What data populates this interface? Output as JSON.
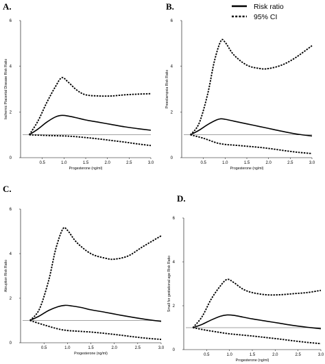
{
  "legend": [
    {
      "label": "Risk ratio",
      "style": "solid"
    },
    {
      "label": "95% CI",
      "style": "dotted"
    }
  ],
  "chart_data": [
    {
      "type": "line",
      "panel": "A.",
      "xlabel": "Progesterone (ng/ml)",
      "ylabel": "Ischemic Placental Disease Risk Ratio",
      "xlim": [
        0,
        3.0
      ],
      "ylim": [
        0,
        6
      ],
      "xticks": [
        "0.5",
        "1.0",
        "1.5",
        "2.0",
        "2.5",
        "3.0"
      ],
      "yticks": [
        "0",
        "2",
        "4",
        "6"
      ],
      "reference_line": 1,
      "series": [
        {
          "role": "estimate",
          "style": "solid",
          "x": [
            0.2,
            0.4,
            0.6,
            0.8,
            0.95,
            1.1,
            1.3,
            1.5,
            1.8,
            2.1,
            2.4,
            2.7,
            3.0
          ],
          "y": [
            1.0,
            1.25,
            1.55,
            1.78,
            1.85,
            1.82,
            1.74,
            1.65,
            1.55,
            1.45,
            1.35,
            1.27,
            1.2
          ]
        },
        {
          "role": "upper",
          "style": "dotted",
          "x": [
            0.2,
            0.4,
            0.6,
            0.8,
            0.95,
            1.1,
            1.3,
            1.5,
            1.8,
            2.1,
            2.4,
            2.7,
            3.0
          ],
          "y": [
            1.0,
            1.6,
            2.4,
            3.1,
            3.5,
            3.3,
            2.95,
            2.75,
            2.7,
            2.7,
            2.75,
            2.78,
            2.8
          ]
        },
        {
          "role": "lower",
          "style": "dotted",
          "x": [
            0.2,
            0.5,
            0.8,
            1.0,
            1.2,
            1.5,
            1.8,
            2.1,
            2.4,
            2.7,
            3.0
          ],
          "y": [
            1.0,
            0.98,
            0.96,
            0.95,
            0.93,
            0.88,
            0.82,
            0.75,
            0.68,
            0.6,
            0.53
          ]
        }
      ]
    },
    {
      "type": "line",
      "panel": "B.",
      "xlabel": "Progesterone (ng/ml)",
      "ylabel": "Preeclampsia Risk Ratio",
      "xlim": [
        0,
        3.0
      ],
      "ylim": [
        0,
        6
      ],
      "xticks": [
        "0.5",
        "1.0",
        "1.5",
        "2.0",
        "2.5",
        "3.0"
      ],
      "yticks": [
        "0",
        "2",
        "4",
        "6"
      ],
      "reference_line": 1,
      "series": [
        {
          "role": "estimate",
          "style": "solid",
          "x": [
            0.2,
            0.4,
            0.6,
            0.8,
            0.9,
            1.0,
            1.2,
            1.5,
            1.8,
            2.1,
            2.4,
            2.7,
            3.0
          ],
          "y": [
            1.0,
            1.2,
            1.45,
            1.65,
            1.7,
            1.68,
            1.6,
            1.48,
            1.36,
            1.24,
            1.12,
            1.02,
            0.95
          ]
        },
        {
          "role": "upper",
          "style": "dotted",
          "x": [
            0.2,
            0.4,
            0.6,
            0.75,
            0.9,
            1.0,
            1.2,
            1.5,
            1.8,
            2.0,
            2.3,
            2.6,
            3.0
          ],
          "y": [
            1.0,
            1.5,
            2.8,
            4.2,
            5.1,
            5.05,
            4.5,
            4.05,
            3.9,
            3.9,
            4.05,
            4.35,
            4.9
          ]
        },
        {
          "role": "lower",
          "style": "dotted",
          "x": [
            0.2,
            0.5,
            0.8,
            1.0,
            1.2,
            1.5,
            1.8,
            2.1,
            2.4,
            2.7,
            3.0
          ],
          "y": [
            1.0,
            0.85,
            0.65,
            0.58,
            0.55,
            0.5,
            0.45,
            0.38,
            0.3,
            0.23,
            0.18
          ]
        }
      ]
    },
    {
      "type": "line",
      "panel": "C.",
      "xlabel": "Progesterone (ng/ml)",
      "ylabel": "Abruption Risk Ratio",
      "xlim": [
        0,
        3.0
      ],
      "ylim": [
        0,
        6
      ],
      "xticks": [
        "0.5",
        "1.0",
        "1.5",
        "2.0",
        "2.5",
        "3.0"
      ],
      "yticks": [
        "0",
        "2",
        "4",
        "6"
      ],
      "reference_line": 1,
      "series": [
        {
          "role": "estimate",
          "style": "solid",
          "x": [
            0.2,
            0.4,
            0.6,
            0.8,
            0.95,
            1.1,
            1.3,
            1.5,
            1.8,
            2.1,
            2.4,
            2.7,
            3.0
          ],
          "y": [
            1.0,
            1.2,
            1.45,
            1.62,
            1.68,
            1.65,
            1.58,
            1.48,
            1.37,
            1.25,
            1.14,
            1.04,
            0.96
          ]
        },
        {
          "role": "upper",
          "style": "dotted",
          "x": [
            0.2,
            0.4,
            0.6,
            0.75,
            0.9,
            1.0,
            1.2,
            1.5,
            1.8,
            2.0,
            2.3,
            2.6,
            3.0
          ],
          "y": [
            1.0,
            1.5,
            2.8,
            4.2,
            5.1,
            5.05,
            4.5,
            4.0,
            3.8,
            3.75,
            3.9,
            4.3,
            4.8
          ]
        },
        {
          "role": "lower",
          "style": "dotted",
          "x": [
            0.2,
            0.5,
            0.8,
            1.0,
            1.2,
            1.5,
            1.8,
            2.1,
            2.4,
            2.7,
            3.0
          ],
          "y": [
            1.0,
            0.8,
            0.62,
            0.55,
            0.52,
            0.48,
            0.42,
            0.35,
            0.27,
            0.2,
            0.15
          ]
        }
      ]
    },
    {
      "type": "line",
      "panel": "D.",
      "xlabel": "Progesterone (ng/ml)",
      "ylabel": "Small for gestational age Risk Ratio",
      "xlim": [
        0,
        3.0
      ],
      "ylim": [
        0,
        6
      ],
      "xticks": [
        "0.5",
        "1.0",
        "1.5",
        "2.0",
        "2.5",
        "3.0"
      ],
      "yticks": [
        "0",
        "2",
        "4",
        "6"
      ],
      "reference_line": 1,
      "series": [
        {
          "role": "estimate",
          "style": "solid",
          "x": [
            0.2,
            0.4,
            0.6,
            0.8,
            0.95,
            1.1,
            1.3,
            1.5,
            1.8,
            2.1,
            2.4,
            2.7,
            3.0
          ],
          "y": [
            1.0,
            1.15,
            1.35,
            1.52,
            1.58,
            1.56,
            1.48,
            1.4,
            1.3,
            1.2,
            1.1,
            1.02,
            0.95
          ]
        },
        {
          "role": "upper",
          "style": "dotted",
          "x": [
            0.2,
            0.4,
            0.6,
            0.8,
            0.95,
            1.1,
            1.3,
            1.5,
            1.8,
            2.1,
            2.4,
            2.7,
            3.0
          ],
          "y": [
            1.0,
            1.5,
            2.3,
            2.9,
            3.2,
            3.05,
            2.75,
            2.6,
            2.5,
            2.5,
            2.55,
            2.6,
            2.7
          ]
        },
        {
          "role": "lower",
          "style": "dotted",
          "x": [
            0.2,
            0.5,
            0.8,
            1.0,
            1.2,
            1.5,
            1.8,
            2.1,
            2.4,
            2.7,
            3.0
          ],
          "y": [
            1.0,
            0.88,
            0.78,
            0.72,
            0.68,
            0.62,
            0.55,
            0.48,
            0.4,
            0.33,
            0.27
          ]
        }
      ]
    }
  ]
}
